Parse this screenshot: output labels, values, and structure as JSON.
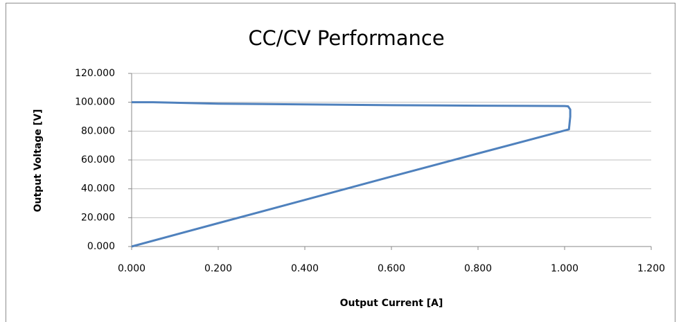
{
  "chart_data": {
    "type": "line",
    "title": "CC/CV Performance",
    "x_label": "Output Current [A]",
    "y_label": "Output  Voltage [V]",
    "series": [
      {
        "name": null,
        "color": "#4f81bd",
        "x": [
          0,
          0.05,
          0.2,
          0.4,
          0.6,
          0.8,
          1.0,
          1.008,
          1.013,
          1.013,
          1.01,
          0.8,
          0.6,
          0.4,
          0.2,
          0
        ],
        "values": [
          100,
          100,
          99,
          98.5,
          98,
          97.6,
          97.4,
          97.2,
          95,
          90,
          81.2,
          64.5,
          48.5,
          32.3,
          16.2,
          0
        ]
      }
    ],
    "xlim": [
      0,
      1.2
    ],
    "xticks": [
      {
        "value": 0,
        "label": "0.000"
      },
      {
        "value": 0.2,
        "label": "0.200"
      },
      {
        "value": 0.4,
        "label": "0.400"
      },
      {
        "value": 0.6,
        "label": "0.600"
      },
      {
        "value": 0.8,
        "label": "0.800"
      },
      {
        "value": 1.0,
        "label": "1.000"
      },
      {
        "value": 1.2,
        "label": "1.200"
      }
    ],
    "ylim": [
      0,
      120
    ],
    "yticks": [
      {
        "value": 0,
        "label": "0.000"
      },
      {
        "value": 20,
        "label": "20.000"
      },
      {
        "value": 40,
        "label": "40.000"
      },
      {
        "value": 60,
        "label": "60.000"
      },
      {
        "value": 80,
        "label": "80.000"
      },
      {
        "value": 100,
        "label": "100.000"
      },
      {
        "value": 120,
        "label": "120.000"
      }
    ],
    "grid": true
  }
}
